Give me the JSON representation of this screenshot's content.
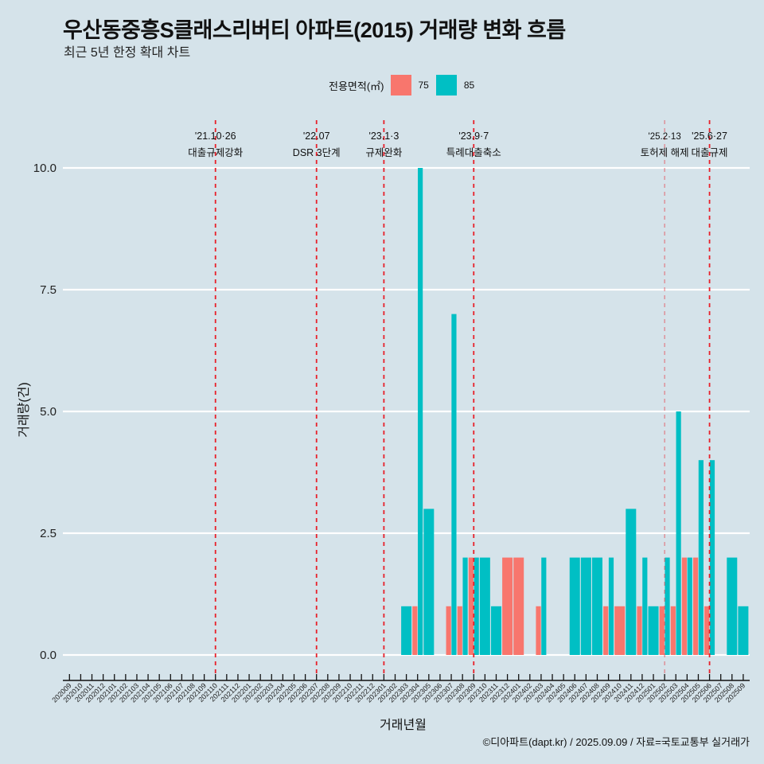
{
  "header": {
    "title": "우산동중흥S클래스리버티 아파트(2015) 거래량 변화 흐름",
    "subtitle": "최근 5년 한정 확대 차트"
  },
  "legend": {
    "title": "전용면적(㎡)",
    "items": [
      {
        "label": "75",
        "color": "#f8766d"
      },
      {
        "label": "85",
        "color": "#00bfc4"
      }
    ]
  },
  "caption": "©디아파트(dapt.kr) / 2025.09.09 / 자료=국토교통부 실거래가",
  "chart_data": {
    "type": "bar",
    "title": "우산동중흥S클래스리버티 아파트(2015) 거래량 변화 흐름",
    "subtitle": "최근 5년 한정 확대 차트",
    "xlabel": "거래년월",
    "ylabel": "거래량(건)",
    "ylim": [
      0,
      10
    ],
    "yticks": [
      "0.0",
      "2.5",
      "5.0",
      "7.5",
      "10.0"
    ],
    "ytick_values": [
      0,
      2.5,
      5,
      7.5,
      10
    ],
    "grid": "horizontal",
    "legend_position": "top",
    "categories": [
      "202009",
      "202010",
      "202011",
      "202012",
      "202101",
      "202102",
      "202103",
      "202104",
      "202105",
      "202106",
      "202107",
      "202108",
      "202109",
      "202110",
      "202111",
      "202112",
      "202201",
      "202202",
      "202203",
      "202204",
      "202205",
      "202206",
      "202207",
      "202208",
      "202209",
      "202210",
      "202211",
      "202212",
      "202301",
      "202302",
      "202303",
      "202304",
      "202305",
      "202306",
      "202307",
      "202308",
      "202309",
      "202310",
      "202311",
      "202312",
      "202401",
      "202402",
      "202403",
      "202404",
      "202405",
      "202406",
      "202407",
      "202408",
      "202409",
      "202410",
      "202411",
      "202412",
      "202501",
      "202502",
      "202503",
      "202504",
      "202505",
      "202506",
      "202507",
      "202508",
      "202509"
    ],
    "series": [
      {
        "name": "75",
        "color": "#f8766d",
        "values": [
          0,
          0,
          0,
          0,
          0,
          0,
          0,
          0,
          0,
          0,
          0,
          0,
          0,
          0,
          0,
          0,
          0,
          0,
          0,
          0,
          0,
          0,
          0,
          0,
          0,
          0,
          0,
          0,
          0,
          0,
          0,
          1,
          0,
          0,
          1,
          1,
          2,
          0,
          0,
          2,
          2,
          0,
          1,
          0,
          0,
          0,
          0,
          0,
          1,
          1,
          0,
          1,
          0,
          1,
          1,
          2,
          2,
          1,
          0,
          0,
          0
        ]
      },
      {
        "name": "85",
        "color": "#00bfc4",
        "values": [
          0,
          0,
          0,
          0,
          0,
          0,
          0,
          0,
          0,
          0,
          0,
          0,
          0,
          0,
          0,
          0,
          0,
          0,
          0,
          0,
          0,
          0,
          0,
          0,
          0,
          0,
          0,
          0,
          0,
          0,
          1,
          10,
          3,
          0,
          7,
          2,
          2,
          2,
          1,
          0,
          0,
          0,
          2,
          0,
          0,
          2,
          2,
          2,
          2,
          0,
          3,
          2,
          1,
          2,
          5,
          2,
          4,
          4,
          0,
          2,
          1
        ]
      }
    ],
    "annotations": [
      {
        "month": "202110",
        "date": "'21.10·26",
        "label": "대출규제강화",
        "style": "bold"
      },
      {
        "month": "202207",
        "date": "'22.07",
        "label": "DSR 3단계",
        "style": "bold"
      },
      {
        "month": "202301",
        "date": "'23.1·3",
        "label": "규제완화",
        "style": "bold"
      },
      {
        "month": "202309",
        "date": "'23.9·7",
        "label": "특례대출축소",
        "style": "bold"
      },
      {
        "month": "202502",
        "date": "'25.2·13",
        "label": "토허제 해제",
        "style": "light"
      },
      {
        "month": "202506",
        "date": "'25.6·27",
        "label": "대출규제",
        "style": "bold"
      }
    ]
  }
}
